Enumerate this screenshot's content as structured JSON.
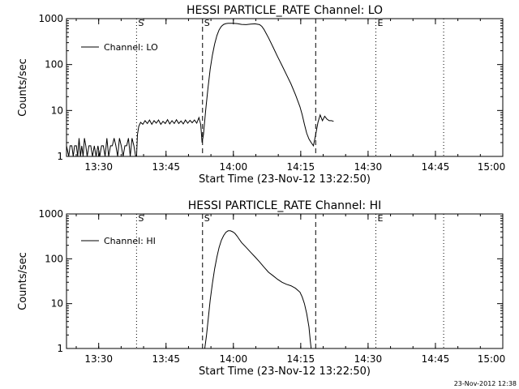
{
  "footer": {
    "timestamp": "23-Nov-2012 12:38"
  },
  "chart_data": [
    {
      "type": "line",
      "title": "HESSI PARTICLE_RATE Channel: LO",
      "xlabel": "Start Time (23-Nov-12 13:22:50)",
      "ylabel": "Counts/sec",
      "yscale": "log",
      "ylim": [
        1,
        1000
      ],
      "xlim_minutes": [
        0,
        97.17
      ],
      "x_ticks": [
        {
          "label": "13:30",
          "min": 7.17
        },
        {
          "label": "13:45",
          "min": 22.17
        },
        {
          "label": "14:00",
          "min": 37.17
        },
        {
          "label": "14:15",
          "min": 52.17
        },
        {
          "label": "14:30",
          "min": 67.17
        },
        {
          "label": "14:45",
          "min": 82.17
        },
        {
          "label": "15:00",
          "min": 97.17
        }
      ],
      "y_ticks": [
        {
          "label": "1",
          "value": 1
        },
        {
          "label": "10",
          "value": 10
        },
        {
          "label": "100",
          "value": 100
        },
        {
          "label": "1000",
          "value": 1000
        }
      ],
      "legend": [
        "Channel: LO"
      ],
      "markers": [
        {
          "label": "S",
          "min": 15.6,
          "style": "dotted"
        },
        {
          "label": "S",
          "min": 30.3,
          "style": "dashed"
        },
        {
          "label": "",
          "min": 55.5,
          "style": "dashed"
        },
        {
          "label": "E",
          "min": 68.9,
          "style": "dotted"
        },
        {
          "label": "",
          "min": 84.0,
          "style": "dotted"
        }
      ],
      "series": [
        {
          "name": "Channel: LO",
          "points": [
            [
              0.0,
              1.7
            ],
            [
              0.5,
              1.0
            ],
            [
              0.8,
              1.7
            ],
            [
              1.2,
              1.7
            ],
            [
              1.5,
              1.0
            ],
            [
              1.8,
              1.7
            ],
            [
              2.2,
              1.7
            ],
            [
              2.5,
              1.0
            ],
            [
              2.8,
              2.5
            ],
            [
              3.1,
              1.0
            ],
            [
              3.4,
              1.7
            ],
            [
              3.7,
              1.0
            ],
            [
              4.0,
              2.5
            ],
            [
              4.3,
              1.7
            ],
            [
              4.6,
              1.0
            ],
            [
              5.0,
              1.7
            ],
            [
              5.4,
              1.7
            ],
            [
              5.8,
              1.0
            ],
            [
              6.2,
              1.7
            ],
            [
              6.6,
              1.0
            ],
            [
              7.0,
              1.7
            ],
            [
              7.4,
              1.0
            ],
            [
              7.8,
              1.7
            ],
            [
              8.2,
              1.7
            ],
            [
              8.6,
              1.0
            ],
            [
              9.0,
              2.5
            ],
            [
              9.4,
              1.0
            ],
            [
              9.8,
              1.7
            ],
            [
              10.2,
              1.7
            ],
            [
              10.6,
              2.5
            ],
            [
              11.0,
              1.7
            ],
            [
              11.4,
              1.0
            ],
            [
              11.8,
              2.5
            ],
            [
              12.2,
              1.7
            ],
            [
              12.6,
              1.0
            ],
            [
              13.0,
              1.7
            ],
            [
              13.4,
              1.7
            ],
            [
              13.8,
              2.5
            ],
            [
              14.2,
              1.0
            ],
            [
              14.6,
              2.5
            ],
            [
              15.0,
              1.7
            ],
            [
              15.4,
              1.0
            ],
            [
              15.6,
              1.0
            ],
            [
              15.8,
              3.0
            ],
            [
              16.1,
              4.5
            ],
            [
              16.5,
              5.5
            ],
            [
              17.0,
              5.0
            ],
            [
              17.5,
              6.0
            ],
            [
              18.0,
              5.2
            ],
            [
              18.5,
              6.2
            ],
            [
              19.0,
              5.0
            ],
            [
              19.5,
              6.0
            ],
            [
              20.0,
              5.3
            ],
            [
              20.5,
              6.2
            ],
            [
              21.0,
              5.0
            ],
            [
              21.5,
              5.8
            ],
            [
              22.0,
              5.2
            ],
            [
              22.5,
              6.3
            ],
            [
              23.0,
              5.1
            ],
            [
              23.5,
              6.0
            ],
            [
              24.0,
              5.2
            ],
            [
              24.5,
              6.3
            ],
            [
              25.0,
              5.2
            ],
            [
              25.5,
              5.9
            ],
            [
              26.0,
              5.1
            ],
            [
              26.5,
              6.2
            ],
            [
              27.0,
              5.3
            ],
            [
              27.5,
              6.1
            ],
            [
              28.0,
              5.4
            ],
            [
              28.5,
              6.2
            ],
            [
              29.0,
              5.3
            ],
            [
              29.5,
              7.0
            ],
            [
              29.9,
              5.0
            ],
            [
              30.2,
              2.0
            ],
            [
              30.5,
              3.0
            ],
            [
              31.0,
              10
            ],
            [
              31.5,
              30
            ],
            [
              32.0,
              80
            ],
            [
              32.5,
              160
            ],
            [
              33.0,
              280
            ],
            [
              33.5,
              430
            ],
            [
              34.0,
              570
            ],
            [
              34.5,
              680
            ],
            [
              35.0,
              750
            ],
            [
              35.5,
              780
            ],
            [
              36.0,
              790
            ],
            [
              37.0,
              790
            ],
            [
              38.0,
              780
            ],
            [
              39.0,
              750
            ],
            [
              40.0,
              740
            ],
            [
              41.0,
              760
            ],
            [
              42.0,
              770
            ],
            [
              43.0,
              740
            ],
            [
              43.5,
              680
            ],
            [
              44.0,
              580
            ],
            [
              44.5,
              470
            ],
            [
              45.0,
              380
            ],
            [
              46.0,
              240
            ],
            [
              47.0,
              150
            ],
            [
              48.0,
              95
            ],
            [
              49.0,
              60
            ],
            [
              50.0,
              38
            ],
            [
              51.0,
              22
            ],
            [
              52.0,
              12
            ],
            [
              52.5,
              8
            ],
            [
              53.0,
              5
            ],
            [
              53.5,
              3.2
            ],
            [
              54.0,
              2.4
            ],
            [
              54.5,
              2.0
            ],
            [
              55.0,
              1.7
            ],
            [
              55.5,
              3.0
            ],
            [
              56.0,
              5.5
            ],
            [
              56.5,
              8.0
            ],
            [
              57.0,
              6.0
            ],
            [
              57.5,
              7.5
            ],
            [
              58.0,
              6.5
            ],
            [
              58.5,
              6.0
            ],
            [
              59.0,
              6.0
            ],
            [
              59.5,
              5.8
            ]
          ]
        }
      ]
    },
    {
      "type": "line",
      "title": "HESSI PARTICLE_RATE Channel: HI",
      "xlabel": "Start Time (23-Nov-12 13:22:50)",
      "ylabel": "Counts/sec",
      "yscale": "log",
      "ylim": [
        1,
        1000
      ],
      "xlim_minutes": [
        0,
        97.17
      ],
      "x_ticks": [
        {
          "label": "13:30",
          "min": 7.17
        },
        {
          "label": "13:45",
          "min": 22.17
        },
        {
          "label": "14:00",
          "min": 37.17
        },
        {
          "label": "14:15",
          "min": 52.17
        },
        {
          "label": "14:30",
          "min": 67.17
        },
        {
          "label": "14:45",
          "min": 82.17
        },
        {
          "label": "15:00",
          "min": 97.17
        }
      ],
      "y_ticks": [
        {
          "label": "1",
          "value": 1
        },
        {
          "label": "10",
          "value": 10
        },
        {
          "label": "100",
          "value": 100
        },
        {
          "label": "1000",
          "value": 1000
        }
      ],
      "legend": [
        "Channel: HI"
      ],
      "markers": [
        {
          "label": "S",
          "min": 15.6,
          "style": "dotted"
        },
        {
          "label": "S",
          "min": 30.3,
          "style": "dashed"
        },
        {
          "label": "",
          "min": 55.5,
          "style": "dashed"
        },
        {
          "label": "E",
          "min": 68.9,
          "style": "dotted"
        },
        {
          "label": "",
          "min": 84.0,
          "style": "dotted"
        }
      ],
      "series": [
        {
          "name": "Channel: HI",
          "points": [
            [
              30.8,
              1.0
            ],
            [
              31.2,
              2.0
            ],
            [
              31.6,
              5
            ],
            [
              32.0,
              12
            ],
            [
              32.5,
              28
            ],
            [
              33.0,
              60
            ],
            [
              33.5,
              110
            ],
            [
              34.0,
              180
            ],
            [
              34.5,
              260
            ],
            [
              35.0,
              330
            ],
            [
              35.5,
              390
            ],
            [
              36.0,
              420
            ],
            [
              36.5,
              420
            ],
            [
              37.0,
              400
            ],
            [
              37.5,
              370
            ],
            [
              38.0,
              320
            ],
            [
              38.5,
              270
            ],
            [
              39.0,
              230
            ],
            [
              40.0,
              180
            ],
            [
              41.0,
              140
            ],
            [
              42.0,
              110
            ],
            [
              43.0,
              85
            ],
            [
              44.0,
              65
            ],
            [
              45.0,
              50
            ],
            [
              46.0,
              42
            ],
            [
              47.0,
              35
            ],
            [
              48.0,
              30
            ],
            [
              49.0,
              27
            ],
            [
              50.0,
              25
            ],
            [
              51.0,
              22
            ],
            [
              52.0,
              18
            ],
            [
              52.5,
              14
            ],
            [
              53.0,
              10
            ],
            [
              53.5,
              6
            ],
            [
              54.0,
              3
            ],
            [
              54.3,
              1.5
            ],
            [
              54.5,
              1.0
            ]
          ]
        }
      ]
    }
  ]
}
